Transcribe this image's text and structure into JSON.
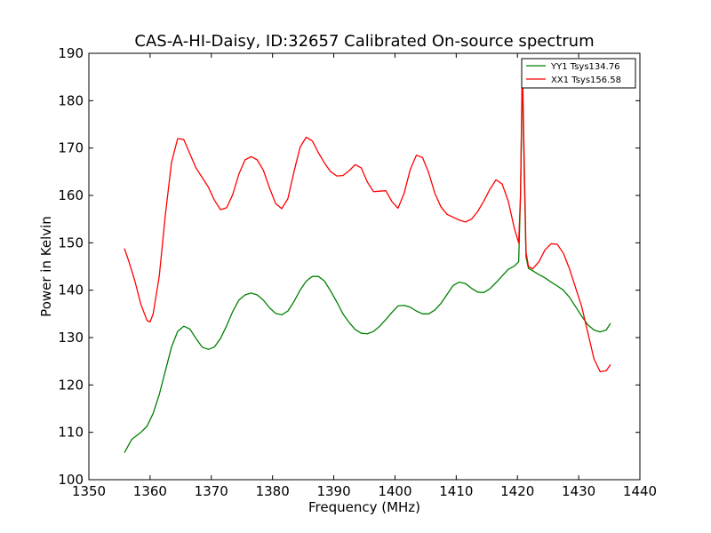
{
  "chart_data": {
    "type": "line",
    "title": "CAS-A-HI-Daisy, ID:32657 Calibrated On-source spectrum",
    "xlabel": "Frequency (MHz)",
    "ylabel": "Power in Kelvin",
    "xlim": [
      1350,
      1440
    ],
    "ylim": [
      100,
      190
    ],
    "xticks": [
      1350,
      1360,
      1370,
      1380,
      1390,
      1400,
      1410,
      1420,
      1430,
      1440
    ],
    "yticks": [
      100,
      110,
      120,
      130,
      140,
      150,
      160,
      170,
      180,
      190
    ],
    "grid": false,
    "legend_position": "top-right",
    "series": [
      {
        "name": "YY1 Tsys134.76",
        "color": "#008000",
        "points": [
          [
            1355.8,
            105.7
          ],
          [
            1357,
            108.5
          ],
          [
            1358.5,
            110.0
          ],
          [
            1359.5,
            111.3
          ],
          [
            1360.5,
            114.0
          ],
          [
            1361.5,
            118.0
          ],
          [
            1362.5,
            123.0
          ],
          [
            1363.5,
            128.0
          ],
          [
            1364.5,
            131.3
          ],
          [
            1365.5,
            132.4
          ],
          [
            1366.5,
            131.8
          ],
          [
            1367.5,
            129.8
          ],
          [
            1368.5,
            128.0
          ],
          [
            1369.5,
            127.5
          ],
          [
            1370.5,
            128.0
          ],
          [
            1371.5,
            129.8
          ],
          [
            1372.5,
            132.5
          ],
          [
            1373.5,
            135.5
          ],
          [
            1374.5,
            137.9
          ],
          [
            1375.5,
            139.0
          ],
          [
            1376.5,
            139.4
          ],
          [
            1377.5,
            139.0
          ],
          [
            1378.5,
            137.9
          ],
          [
            1379.5,
            136.3
          ],
          [
            1380.5,
            135.1
          ],
          [
            1381.5,
            134.8
          ],
          [
            1382.5,
            135.6
          ],
          [
            1383.5,
            137.6
          ],
          [
            1384.5,
            140.0
          ],
          [
            1385.5,
            141.9
          ],
          [
            1386.5,
            142.9
          ],
          [
            1387.5,
            142.9
          ],
          [
            1388.5,
            141.9
          ],
          [
            1389.5,
            139.8
          ],
          [
            1390.5,
            137.5
          ],
          [
            1391.5,
            135.0
          ],
          [
            1392.5,
            133.2
          ],
          [
            1393.5,
            131.7
          ],
          [
            1394.5,
            130.9
          ],
          [
            1395.5,
            130.8
          ],
          [
            1396.5,
            131.3
          ],
          [
            1397.5,
            132.4
          ],
          [
            1398.5,
            133.8
          ],
          [
            1399.5,
            135.3
          ],
          [
            1400.5,
            136.7
          ],
          [
            1401.5,
            136.8
          ],
          [
            1402.5,
            136.4
          ],
          [
            1403.5,
            135.6
          ],
          [
            1404.5,
            135.0
          ],
          [
            1405.5,
            135.0
          ],
          [
            1406.5,
            135.8
          ],
          [
            1407.5,
            137.2
          ],
          [
            1408.5,
            139.1
          ],
          [
            1409.5,
            141.0
          ],
          [
            1410.5,
            141.7
          ],
          [
            1411.5,
            141.4
          ],
          [
            1412.5,
            140.4
          ],
          [
            1413.5,
            139.6
          ],
          [
            1414.5,
            139.5
          ],
          [
            1415.5,
            140.3
          ],
          [
            1416.5,
            141.6
          ],
          [
            1417.5,
            143.0
          ],
          [
            1418.5,
            144.4
          ],
          [
            1419.5,
            145.1
          ],
          [
            1420.2,
            146.0
          ],
          [
            1420.5,
            160.0
          ],
          [
            1420.8,
            186.0
          ],
          [
            1421.1,
            165.0
          ],
          [
            1421.4,
            147.0
          ],
          [
            1421.8,
            144.6
          ],
          [
            1422.5,
            144.1
          ],
          [
            1423.5,
            143.3
          ],
          [
            1424.5,
            142.6
          ],
          [
            1425.5,
            141.7
          ],
          [
            1426.5,
            140.9
          ],
          [
            1427.5,
            140.0
          ],
          [
            1428.5,
            138.5
          ],
          [
            1429.5,
            136.5
          ],
          [
            1430.5,
            134.5
          ],
          [
            1431.5,
            132.7
          ],
          [
            1432.5,
            131.6
          ],
          [
            1433.5,
            131.2
          ],
          [
            1434.5,
            131.6
          ],
          [
            1435.2,
            133.0
          ]
        ]
      },
      {
        "name": "XX1 Tsys156.58",
        "color": "#ff0000",
        "points": [
          [
            1355.8,
            148.8
          ],
          [
            1356.5,
            146.2
          ],
          [
            1357.5,
            142.0
          ],
          [
            1358.5,
            137.0
          ],
          [
            1359.5,
            133.6
          ],
          [
            1360.0,
            133.3
          ],
          [
            1360.5,
            135.0
          ],
          [
            1361.5,
            143.0
          ],
          [
            1362.5,
            156.0
          ],
          [
            1363.5,
            167.0
          ],
          [
            1364.5,
            172.0
          ],
          [
            1365.5,
            171.8
          ],
          [
            1366.5,
            168.8
          ],
          [
            1367.5,
            165.8
          ],
          [
            1368.5,
            163.8
          ],
          [
            1369.5,
            161.8
          ],
          [
            1370.5,
            159.0
          ],
          [
            1371.5,
            157.0
          ],
          [
            1372.5,
            157.4
          ],
          [
            1373.5,
            160.2
          ],
          [
            1374.5,
            164.5
          ],
          [
            1375.5,
            167.5
          ],
          [
            1376.5,
            168.2
          ],
          [
            1377.5,
            167.5
          ],
          [
            1378.5,
            165.3
          ],
          [
            1379.5,
            161.6
          ],
          [
            1380.5,
            158.3
          ],
          [
            1381.5,
            157.2
          ],
          [
            1382.5,
            159.3
          ],
          [
            1383.5,
            165.0
          ],
          [
            1384.5,
            170.2
          ],
          [
            1385.5,
            172.3
          ],
          [
            1386.5,
            171.5
          ],
          [
            1387.5,
            169.0
          ],
          [
            1388.5,
            166.8
          ],
          [
            1389.5,
            165.0
          ],
          [
            1390.5,
            164.1
          ],
          [
            1391.5,
            164.2
          ],
          [
            1392.5,
            165.2
          ],
          [
            1393.5,
            166.5
          ],
          [
            1394.5,
            165.8
          ],
          [
            1395.5,
            162.8
          ],
          [
            1396.5,
            160.8
          ],
          [
            1397.5,
            160.9
          ],
          [
            1398.5,
            161.0
          ],
          [
            1399.5,
            158.7
          ],
          [
            1400.5,
            157.3
          ],
          [
            1401.5,
            160.5
          ],
          [
            1402.5,
            165.5
          ],
          [
            1403.5,
            168.5
          ],
          [
            1404.5,
            168.0
          ],
          [
            1405.5,
            164.8
          ],
          [
            1406.5,
            160.5
          ],
          [
            1407.5,
            157.6
          ],
          [
            1408.5,
            156.0
          ],
          [
            1409.5,
            155.4
          ],
          [
            1410.5,
            154.8
          ],
          [
            1411.5,
            154.4
          ],
          [
            1412.5,
            155.0
          ],
          [
            1413.5,
            156.6
          ],
          [
            1414.5,
            158.8
          ],
          [
            1415.5,
            161.3
          ],
          [
            1416.5,
            163.3
          ],
          [
            1417.5,
            162.4
          ],
          [
            1418.5,
            158.8
          ],
          [
            1419.5,
            153.0
          ],
          [
            1420.2,
            150.0
          ],
          [
            1420.5,
            160.0
          ],
          [
            1420.8,
            188.0
          ],
          [
            1421.1,
            168.0
          ],
          [
            1421.4,
            148.0
          ],
          [
            1421.8,
            145.0
          ],
          [
            1422.5,
            144.5
          ],
          [
            1423.5,
            146.0
          ],
          [
            1424.5,
            148.5
          ],
          [
            1425.5,
            149.8
          ],
          [
            1426.5,
            149.7
          ],
          [
            1427.5,
            147.8
          ],
          [
            1428.5,
            144.5
          ],
          [
            1429.5,
            140.5
          ],
          [
            1430.5,
            136.5
          ],
          [
            1431.5,
            131.0
          ],
          [
            1432.5,
            125.5
          ],
          [
            1433.5,
            122.8
          ],
          [
            1434.5,
            123.0
          ],
          [
            1435.2,
            124.3
          ]
        ]
      }
    ]
  }
}
